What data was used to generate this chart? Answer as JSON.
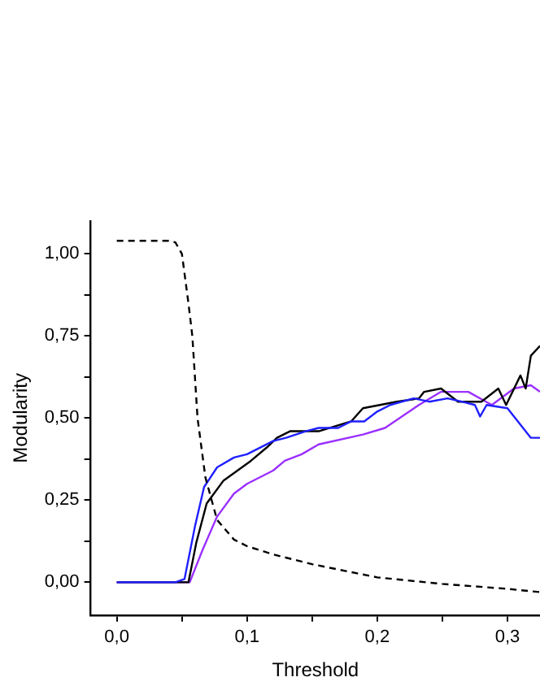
{
  "chart_data": {
    "type": "line",
    "xlabel": "Threshold",
    "ylabel": "Modularity",
    "xlim": [
      -0.02,
      0.325
    ],
    "ylim": [
      -0.1,
      1.1
    ],
    "xticks": [
      {
        "value": 0,
        "label": "0,0"
      },
      {
        "value": 0.05,
        "label": null
      },
      {
        "value": 0.1,
        "label": "0,1"
      },
      {
        "value": 0.15,
        "label": null
      },
      {
        "value": 0.2,
        "label": "0,2"
      },
      {
        "value": 0.25,
        "label": null
      },
      {
        "value": 0.3,
        "label": "0,3"
      }
    ],
    "yticks": [
      {
        "value": 0,
        "label": "0,00"
      },
      {
        "value": 0.125,
        "label": null
      },
      {
        "value": 0.25,
        "label": "0,25"
      },
      {
        "value": 0.375,
        "label": null
      },
      {
        "value": 0.5,
        "label": "0,50"
      },
      {
        "value": 0.625,
        "label": null
      },
      {
        "value": 0.75,
        "label": "0,75"
      },
      {
        "value": 0.875,
        "label": null
      },
      {
        "value": 1,
        "label": "1,00"
      }
    ],
    "grid": false,
    "legend": false,
    "marker": "none",
    "series": [
      {
        "color": "#000000",
        "line_style": "dashed",
        "x": [
          0,
          0.04,
          0.045,
          0.05,
          0.055,
          0.058,
          0.062,
          0.068,
          0.077,
          0.09,
          0.1,
          0.12,
          0.15,
          0.2,
          0.25,
          0.3,
          0.325
        ],
        "values": [
          1.04,
          1.04,
          1.035,
          1.0,
          0.85,
          0.75,
          0.5,
          0.32,
          0.19,
          0.13,
          0.11,
          0.085,
          0.055,
          0.015,
          -0.005,
          -0.02,
          -0.03
        ]
      },
      {
        "color": "#1f1fff",
        "x": [
          0,
          0.045,
          0.052,
          0.06,
          0.067,
          0.077,
          0.09,
          0.1,
          0.12,
          0.13,
          0.145,
          0.155,
          0.17,
          0.18,
          0.19,
          0.2,
          0.21,
          0.228,
          0.24,
          0.254,
          0.265,
          0.275,
          0.279,
          0.284,
          0.3,
          0.318,
          0.325
        ],
        "values": [
          0,
          0,
          0.01,
          0.17,
          0.29,
          0.35,
          0.38,
          0.39,
          0.43,
          0.44,
          0.46,
          0.47,
          0.47,
          0.49,
          0.49,
          0.52,
          0.54,
          0.56,
          0.55,
          0.56,
          0.55,
          0.54,
          0.505,
          0.54,
          0.53,
          0.44,
          0.44
        ]
      },
      {
        "color": "#000000",
        "x": [
          0,
          0.055,
          0.061,
          0.069,
          0.082,
          0.103,
          0.115,
          0.123,
          0.133,
          0.155,
          0.18,
          0.189,
          0.202,
          0.215,
          0.232,
          0.236,
          0.249,
          0.262,
          0.28,
          0.293,
          0.299,
          0.31,
          0.314,
          0.318,
          0.325
        ],
        "values": [
          0,
          0,
          0.12,
          0.24,
          0.31,
          0.37,
          0.41,
          0.44,
          0.46,
          0.46,
          0.49,
          0.53,
          0.54,
          0.55,
          0.56,
          0.58,
          0.59,
          0.55,
          0.55,
          0.59,
          0.54,
          0.63,
          0.59,
          0.69,
          0.72
        ]
      },
      {
        "color": "#9b30ff",
        "x": [
          0,
          0.056,
          0.066,
          0.077,
          0.09,
          0.1,
          0.12,
          0.129,
          0.142,
          0.155,
          0.189,
          0.206,
          0.232,
          0.249,
          0.27,
          0.288,
          0.305,
          0.318,
          0.325
        ],
        "values": [
          0,
          0,
          0.1,
          0.2,
          0.27,
          0.3,
          0.34,
          0.37,
          0.39,
          0.42,
          0.45,
          0.47,
          0.54,
          0.58,
          0.58,
          0.54,
          0.59,
          0.6,
          0.58
        ]
      }
    ]
  }
}
